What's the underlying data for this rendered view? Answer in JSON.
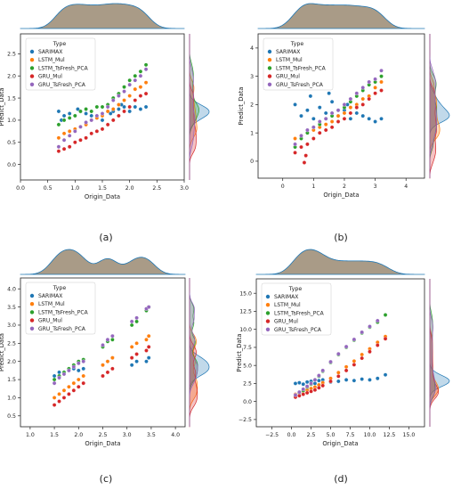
{
  "colors": {
    "SARIMAX": "#1f77b4",
    "LSTM_Mul": "#ff7f0e",
    "LSTM_TsFresh_PCA": "#2ca02c",
    "GRU_Mul": "#d62728",
    "GRU_TsFresh_PCA": "#9467bd",
    "marginal": "#8c7a5f"
  },
  "chart_data": [
    {
      "type": "scatter",
      "panel_label": "(a)",
      "xlabel": "Origin_Data",
      "ylabel": "Predict_Data",
      "xlim": [
        0.0,
        3.0
      ],
      "ylim": [
        -0.35,
        2.95
      ],
      "xticks": [
        "0.0",
        "0.5",
        "1.0",
        "1.5",
        "2.0",
        "2.5",
        "3.0"
      ],
      "yticks": [
        "0.0",
        "0.5",
        "1.0",
        "1.5",
        "2.0",
        "2.5"
      ],
      "legend": {
        "title": "Type",
        "placement": "upper-left",
        "entries": [
          "SARIMAX",
          "LSTM_Mul",
          "LSTM_TsFresh_PCA",
          "GRU_Mul",
          "GRU_TsFresh_PCA"
        ]
      },
      "series": [
        {
          "name": "SARIMAX",
          "x": [
            0.7,
            0.8,
            0.9,
            1.0,
            1.1,
            1.2,
            1.3,
            1.4,
            1.5,
            1.6,
            1.7,
            1.8,
            1.9,
            2.0,
            2.1,
            2.2,
            2.3,
            0.75,
            1.05,
            1.65,
            1.85
          ],
          "y": [
            1.2,
            1.1,
            1.15,
            1.1,
            1.2,
            1.15,
            1.1,
            1.05,
            1.0,
            1.2,
            1.2,
            1.25,
            1.3,
            1.2,
            1.3,
            1.25,
            1.3,
            1.0,
            1.25,
            1.15,
            1.35
          ]
        },
        {
          "name": "LSTM_Mul",
          "x": [
            0.7,
            0.8,
            0.9,
            1.0,
            1.1,
            1.2,
            1.3,
            1.4,
            1.5,
            1.6,
            1.7,
            1.8,
            1.9,
            2.0,
            2.1,
            2.2,
            2.3
          ],
          "y": [
            0.6,
            0.7,
            0.75,
            0.8,
            0.85,
            0.9,
            1.0,
            1.05,
            1.1,
            1.2,
            1.25,
            1.35,
            1.45,
            1.55,
            1.7,
            1.75,
            1.85
          ]
        },
        {
          "name": "LSTM_TsFresh_PCA",
          "x": [
            0.7,
            0.8,
            0.9,
            1.0,
            1.1,
            1.2,
            1.3,
            1.4,
            1.5,
            1.6,
            1.7,
            1.8,
            1.9,
            2.0,
            2.1,
            2.2,
            2.3
          ],
          "y": [
            0.9,
            1.0,
            1.05,
            1.1,
            1.2,
            1.25,
            1.2,
            1.3,
            1.3,
            1.35,
            1.5,
            1.6,
            1.75,
            1.9,
            2.0,
            2.1,
            2.25
          ]
        },
        {
          "name": "GRU_Mul",
          "x": [
            0.7,
            0.8,
            0.9,
            1.0,
            1.1,
            1.2,
            1.3,
            1.4,
            1.5,
            1.6,
            1.7,
            1.8,
            1.9,
            2.0,
            2.1,
            2.2,
            2.3
          ],
          "y": [
            0.3,
            0.35,
            0.4,
            0.5,
            0.55,
            0.6,
            0.7,
            0.75,
            0.8,
            0.9,
            1.0,
            1.1,
            1.2,
            1.3,
            1.45,
            1.55,
            1.6
          ]
        },
        {
          "name": "GRU_TsFresh_PCA",
          "x": [
            0.7,
            0.8,
            0.9,
            1.0,
            1.1,
            1.2,
            1.3,
            1.4,
            1.5,
            1.6,
            1.7,
            1.8,
            1.9,
            2.0,
            2.1,
            2.2,
            2.3
          ],
          "y": [
            0.4,
            0.55,
            0.65,
            0.75,
            0.85,
            0.95,
            1.0,
            1.1,
            1.15,
            1.3,
            1.45,
            1.55,
            1.65,
            1.8,
            1.9,
            2.0,
            2.15
          ]
        }
      ]
    },
    {
      "type": "scatter",
      "panel_label": "(b)",
      "xlabel": "Origin_Data",
      "ylabel": "Predict_Data",
      "xlim": [
        -0.8,
        4.6
      ],
      "ylim": [
        -0.6,
        4.5
      ],
      "xticks": [
        "0",
        "1",
        "2",
        "3",
        "4"
      ],
      "yticks": [
        "0",
        "1",
        "2",
        "3",
        "4"
      ],
      "legend": {
        "title": "Type",
        "placement": "upper-left",
        "entries": [
          "SARIMAX",
          "LSTM_Mul",
          "LSTM_TsFresh_PCA",
          "GRU_Mul",
          "GRU_TsFresh_PCA"
        ]
      },
      "series": [
        {
          "name": "SARIMAX",
          "x": [
            0.4,
            0.6,
            0.8,
            1.0,
            1.2,
            1.4,
            1.6,
            1.8,
            2.0,
            2.2,
            2.4,
            2.6,
            2.8,
            3.0,
            3.2,
            0.9,
            1.5,
            2.1
          ],
          "y": [
            2.0,
            1.6,
            1.8,
            1.5,
            1.9,
            1.7,
            2.1,
            1.6,
            1.8,
            1.5,
            1.7,
            1.6,
            1.5,
            1.4,
            1.5,
            2.3,
            2.4,
            2.0
          ]
        },
        {
          "name": "LSTM_Mul",
          "x": [
            0.4,
            0.6,
            0.8,
            1.0,
            1.2,
            1.4,
            1.6,
            1.8,
            2.0,
            2.2,
            2.4,
            2.6,
            2.8,
            3.0,
            3.2
          ],
          "y": [
            0.8,
            0.9,
            1.0,
            1.1,
            1.2,
            1.3,
            1.4,
            1.6,
            1.7,
            1.9,
            2.0,
            2.2,
            2.3,
            2.6,
            2.8
          ]
        },
        {
          "name": "LSTM_TsFresh_PCA",
          "x": [
            0.4,
            0.6,
            0.8,
            1.0,
            1.2,
            1.4,
            1.6,
            1.8,
            2.0,
            2.2,
            2.4,
            2.6,
            2.8,
            3.0,
            3.2
          ],
          "y": [
            0.5,
            0.8,
            1.0,
            1.2,
            1.3,
            1.5,
            1.6,
            1.8,
            1.9,
            2.1,
            2.3,
            2.5,
            2.7,
            2.8,
            3.0
          ]
        },
        {
          "name": "GRU_Mul",
          "x": [
            0.4,
            0.6,
            0.8,
            1.0,
            1.2,
            1.4,
            1.6,
            1.8,
            2.0,
            2.2,
            2.4,
            2.6,
            2.8,
            3.0,
            3.2,
            0.7,
            0.75
          ],
          "y": [
            0.3,
            0.5,
            0.6,
            0.8,
            1.0,
            1.1,
            1.2,
            1.4,
            1.5,
            1.7,
            1.9,
            2.0,
            2.2,
            2.4,
            2.5,
            -0.05,
            0.2
          ]
        },
        {
          "name": "GRU_TsFresh_PCA",
          "x": [
            0.4,
            0.6,
            0.8,
            1.0,
            1.2,
            1.4,
            1.6,
            1.8,
            2.0,
            2.2,
            2.4,
            2.6,
            2.8,
            3.0,
            3.2
          ],
          "y": [
            0.6,
            0.9,
            1.1,
            1.2,
            1.4,
            1.5,
            1.7,
            1.8,
            2.0,
            2.2,
            2.4,
            2.6,
            2.8,
            2.9,
            3.2
          ]
        }
      ]
    },
    {
      "type": "scatter",
      "panel_label": "(c)",
      "xlabel": "Origin_Data",
      "ylabel": "Predict_Data",
      "xlim": [
        0.8,
        4.2
      ],
      "ylim": [
        0.2,
        4.3
      ],
      "xticks": [
        "1.0",
        "1.5",
        "2.0",
        "2.5",
        "3.0",
        "3.5",
        "4.0"
      ],
      "yticks": [
        "0.5",
        "1.0",
        "1.5",
        "2.0",
        "2.5",
        "3.0",
        "3.5",
        "4.0"
      ],
      "legend": {
        "title": "Type",
        "placement": "upper-left",
        "entries": [
          "SARIMAX",
          "LSTM_Mul",
          "LSTM_TsFresh_PCA",
          "GRU_Mul",
          "GRU_TsFresh_PCA"
        ]
      },
      "series": [
        {
          "name": "SARIMAX",
          "x": [
            1.5,
            1.6,
            1.7,
            1.8,
            1.9,
            2.0,
            2.1,
            2.5,
            2.6,
            2.7,
            3.1,
            3.2,
            3.4,
            3.45
          ],
          "y": [
            1.6,
            1.7,
            1.7,
            1.75,
            1.8,
            1.75,
            1.8,
            1.9,
            2.0,
            2.1,
            1.9,
            2.0,
            2.0,
            2.1
          ]
        },
        {
          "name": "LSTM_Mul",
          "x": [
            1.5,
            1.6,
            1.7,
            1.8,
            1.9,
            2.0,
            2.1,
            2.5,
            2.6,
            2.7,
            3.1,
            3.2,
            3.4,
            3.45
          ],
          "y": [
            1.0,
            1.1,
            1.2,
            1.3,
            1.4,
            1.5,
            1.6,
            1.9,
            2.0,
            2.1,
            2.4,
            2.5,
            2.6,
            2.7
          ]
        },
        {
          "name": "LSTM_TsFresh_PCA",
          "x": [
            1.5,
            1.6,
            1.7,
            1.8,
            1.9,
            2.0,
            2.1,
            2.5,
            2.6,
            2.7,
            3.1,
            3.2,
            3.4,
            3.45
          ],
          "y": [
            1.5,
            1.6,
            1.7,
            1.8,
            1.9,
            2.0,
            2.05,
            2.4,
            2.55,
            2.6,
            3.0,
            3.1,
            3.4,
            3.5
          ]
        },
        {
          "name": "GRU_Mul",
          "x": [
            1.5,
            1.6,
            1.7,
            1.8,
            1.9,
            2.0,
            2.1,
            2.5,
            2.6,
            2.7,
            3.1,
            3.2,
            3.4,
            3.45
          ],
          "y": [
            0.8,
            0.9,
            1.0,
            1.1,
            1.2,
            1.3,
            1.4,
            1.6,
            1.7,
            1.8,
            2.1,
            2.2,
            2.3,
            2.4
          ]
        },
        {
          "name": "GRU_TsFresh_PCA",
          "x": [
            1.5,
            1.6,
            1.7,
            1.8,
            1.9,
            2.0,
            2.1,
            2.5,
            2.6,
            2.7,
            3.1,
            3.2,
            3.4,
            3.45
          ],
          "y": [
            1.4,
            1.55,
            1.65,
            1.75,
            1.85,
            1.95,
            2.0,
            2.45,
            2.6,
            2.7,
            3.1,
            3.2,
            3.45,
            3.5
          ]
        }
      ]
    },
    {
      "type": "scatter",
      "panel_label": "(d)",
      "xlabel": "Origin_Data",
      "ylabel": "Predict_Data",
      "xlim": [
        -4.5,
        17.0
      ],
      "ylim": [
        -3.5,
        17.0
      ],
      "xticks": [
        "−2.5",
        "0.0",
        "2.5",
        "5.0",
        "7.5",
        "10.0",
        "12.5",
        "15.0"
      ],
      "yticks": [
        "−2.5",
        "0.0",
        "2.5",
        "5.0",
        "7.5",
        "10.0",
        "12.5",
        "15.0"
      ],
      "legend": {
        "title": "Type",
        "placement": "upper-left",
        "entries": [
          "SARIMAX",
          "LSTM_Mul",
          "LSTM_TsFresh_PCA",
          "GRU_Mul",
          "GRU_TsFresh_PCA"
        ]
      },
      "series": [
        {
          "name": "SARIMAX",
          "x": [
            0.5,
            1.0,
            1.5,
            2.0,
            2.5,
            3.0,
            3.5,
            4.0,
            5.0,
            6.0,
            7.0,
            8.0,
            9.0,
            10.0,
            11.0,
            12.0
          ],
          "y": [
            2.5,
            2.6,
            2.4,
            2.7,
            2.8,
            2.5,
            2.9,
            3.0,
            2.7,
            2.8,
            3.0,
            2.9,
            3.1,
            3.0,
            3.2,
            3.7
          ]
        },
        {
          "name": "LSTM_Mul",
          "x": [
            0.5,
            1.0,
            1.5,
            2.0,
            2.5,
            3.0,
            3.5,
            4.0,
            5.0,
            6.0,
            7.0,
            8.0,
            9.0,
            10.0,
            11.0,
            12.0
          ],
          "y": [
            1.0,
            1.2,
            1.4,
            1.6,
            1.8,
            2.0,
            2.3,
            2.6,
            3.2,
            4.0,
            4.8,
            5.6,
            6.5,
            7.3,
            8.2,
            9.0
          ]
        },
        {
          "name": "LSTM_TsFresh_PCA",
          "x": [
            0.5,
            1.0,
            1.5,
            2.0,
            2.5,
            3.0,
            3.5,
            4.0,
            5.0,
            6.0,
            7.0,
            8.0,
            9.0,
            10.0,
            11.0,
            12.0
          ],
          "y": [
            0.8,
            1.2,
            1.5,
            2.0,
            2.4,
            3.0,
            3.5,
            4.2,
            5.4,
            6.5,
            7.5,
            8.5,
            9.5,
            10.3,
            11.0,
            12.0
          ]
        },
        {
          "name": "GRU_Mul",
          "x": [
            0.5,
            1.0,
            1.5,
            2.0,
            2.5,
            3.0,
            3.5,
            4.0,
            5.0,
            6.0,
            7.0,
            8.0,
            9.0,
            10.0,
            11.0,
            12.0
          ],
          "y": [
            0.6,
            0.8,
            1.0,
            1.2,
            1.4,
            1.6,
            1.9,
            2.2,
            2.8,
            3.5,
            4.3,
            5.1,
            6.0,
            6.9,
            7.8,
            8.7
          ]
        },
        {
          "name": "GRU_TsFresh_PCA",
          "x": [
            0.5,
            1.0,
            1.5,
            2.0,
            2.5,
            3.0,
            3.5,
            4.0,
            5.0,
            6.0,
            7.0,
            8.0,
            9.0,
            10.0,
            11.0
          ],
          "y": [
            0.9,
            1.3,
            1.7,
            2.1,
            2.5,
            3.0,
            3.6,
            4.3,
            5.5,
            6.6,
            7.6,
            8.6,
            9.6,
            10.4,
            11.2
          ]
        }
      ]
    }
  ]
}
